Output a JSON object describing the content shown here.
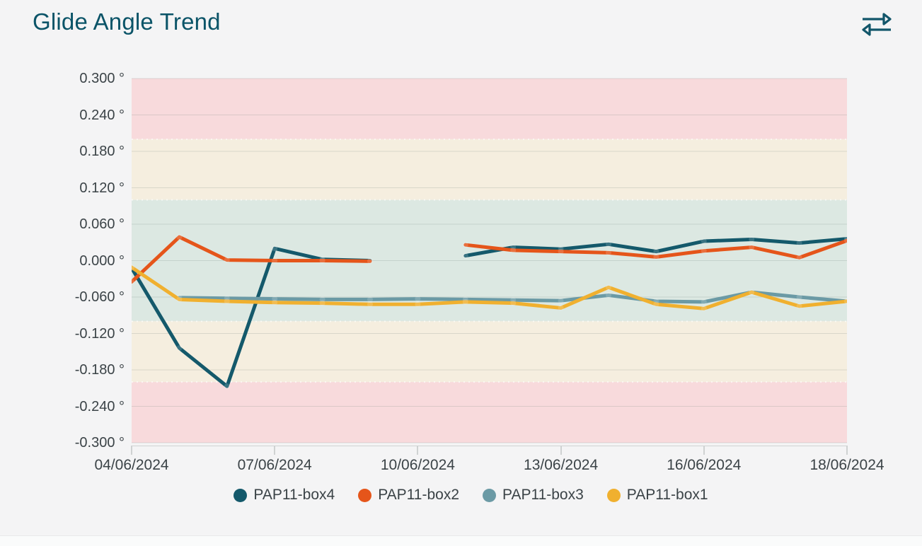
{
  "header": {
    "title": "Glide Angle Trend",
    "icon": "swap-horizontal-arrows-icon"
  },
  "colors": {
    "page_background": "#f4f4f5",
    "title": "#0b5468",
    "axis_text": "#3b4347",
    "axis_line": "#cfd2d2",
    "gridline": "rgba(120,130,128,0.22)",
    "band_boundary": "rgba(255,255,255,0.6)"
  },
  "chart_data": {
    "type": "line",
    "title": "Glide Angle Trend",
    "x_axis": {
      "n_points": 16,
      "tick_indices": [
        0,
        3,
        6,
        9,
        12,
        15
      ],
      "tick_labels": [
        "04/06/2024",
        "07/06/2024",
        "10/06/2024",
        "13/06/2024",
        "16/06/2024",
        "18/06/2024"
      ]
    },
    "y_axis": {
      "min": -0.3,
      "max": 0.3,
      "step": 0.06,
      "unit": "°",
      "tick_values": [
        0.3,
        0.24,
        0.18,
        0.12,
        0.06,
        0,
        -0.06,
        -0.12,
        -0.18,
        -0.24,
        -0.3
      ],
      "tick_labels": [
        "0.300 °",
        "0.240 °",
        "0.180 °",
        "0.120 °",
        "0.060 °",
        "0.000 °",
        "-0.060 °",
        "-0.120 °",
        "-0.180 °",
        "-0.240 °",
        "-0.300 °"
      ]
    },
    "bands": [
      {
        "zone": "red-upper",
        "from": 0.3,
        "to": 0.2,
        "color": "#f8dadc"
      },
      {
        "zone": "amber-upper",
        "from": 0.2,
        "to": 0.1,
        "color": "#f5eedf"
      },
      {
        "zone": "green",
        "from": 0.1,
        "to": -0.1,
        "color": "#dce8e2"
      },
      {
        "zone": "amber-lower",
        "from": -0.1,
        "to": -0.2,
        "color": "#f5eedf"
      },
      {
        "zone": "red-lower",
        "from": -0.2,
        "to": -0.3,
        "color": "#f8dadc"
      }
    ],
    "series": [
      {
        "name": "PAP11-box4",
        "color": "#14596b",
        "values": [
          -0.012,
          -0.144,
          -0.207,
          0.02,
          0.002,
          0.0,
          null,
          0.008,
          0.022,
          0.019,
          0.027,
          0.015,
          0.032,
          0.035,
          0.029,
          0.036
        ]
      },
      {
        "name": "PAP11-box2",
        "color": "#e5551a",
        "values": [
          -0.035,
          0.039,
          0.001,
          0.0,
          0.0,
          -0.001,
          null,
          0.026,
          0.017,
          0.015,
          0.013,
          0.006,
          0.016,
          0.022,
          0.005,
          0.033
        ]
      },
      {
        "name": "PAP11-box3",
        "color": "#6b9aa5",
        "values": [
          null,
          -0.061,
          -0.062,
          -0.063,
          -0.064,
          -0.064,
          -0.063,
          -0.064,
          -0.065,
          -0.066,
          -0.057,
          -0.067,
          -0.068,
          -0.052,
          -0.06,
          -0.067
        ]
      },
      {
        "name": "PAP11-box1",
        "color": "#f0b02f",
        "values": [
          -0.011,
          -0.064,
          -0.067,
          -0.069,
          -0.07,
          -0.072,
          -0.072,
          -0.068,
          -0.07,
          -0.078,
          -0.044,
          -0.072,
          -0.079,
          -0.052,
          -0.075,
          -0.067
        ]
      }
    ],
    "legend": {
      "position": "bottom",
      "entries": [
        "PAP11-box4",
        "PAP11-box2",
        "PAP11-box3",
        "PAP11-box1"
      ]
    }
  }
}
